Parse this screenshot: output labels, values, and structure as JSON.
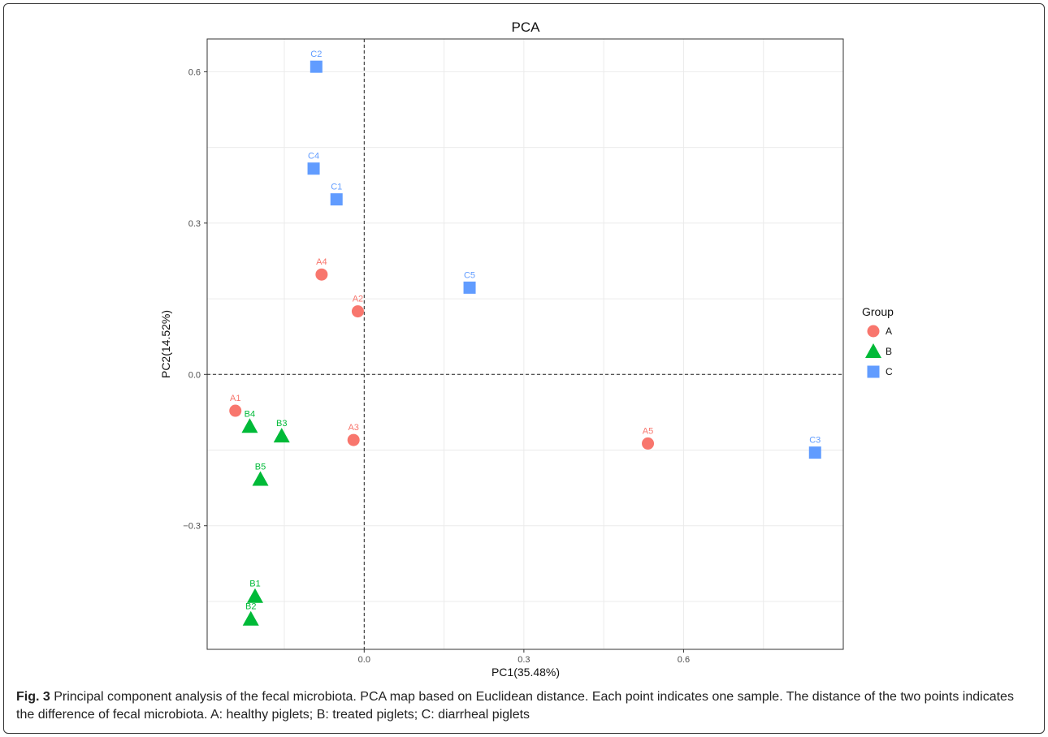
{
  "chart_data": {
    "type": "scatter",
    "title": "PCA",
    "xlabel": "PC1(35.48%)",
    "ylabel": "PC2(14.52%)",
    "xlim": [
      -0.295,
      0.9
    ],
    "ylim": [
      -0.545,
      0.665
    ],
    "xticks": [
      0.0,
      0.3,
      0.6
    ],
    "xtick_labels": [
      "0.0",
      "0.3",
      "0.6"
    ],
    "yticks": [
      -0.3,
      0.0,
      0.3,
      0.6
    ],
    "ytick_labels": [
      "−0.3",
      "0.0",
      "0.3",
      "0.6"
    ],
    "grid": true,
    "reference_lines": {
      "x": 0.0,
      "y": 0.0,
      "style": "dashed"
    },
    "legend": {
      "title": "Group",
      "position": "right",
      "entries": [
        {
          "label": "A",
          "shape": "circle",
          "color": "#F8766D"
        },
        {
          "label": "B",
          "shape": "triangle",
          "color": "#00BA38"
        },
        {
          "label": "C",
          "shape": "square",
          "color": "#619CFF"
        }
      ]
    },
    "series": [
      {
        "name": "A",
        "shape": "circle",
        "color": "#F8766D",
        "points": [
          {
            "label": "A1",
            "x": -0.242,
            "y": -0.072
          },
          {
            "label": "A2",
            "x": -0.012,
            "y": 0.125
          },
          {
            "label": "A3",
            "x": -0.02,
            "y": -0.13
          },
          {
            "label": "A4",
            "x": -0.08,
            "y": 0.198
          },
          {
            "label": "A5",
            "x": 0.533,
            "y": -0.137
          }
        ]
      },
      {
        "name": "B",
        "shape": "triangle",
        "color": "#00BA38",
        "points": [
          {
            "label": "B1",
            "x": -0.205,
            "y": -0.44
          },
          {
            "label": "B2",
            "x": -0.213,
            "y": -0.485
          },
          {
            "label": "B3",
            "x": -0.155,
            "y": -0.122
          },
          {
            "label": "B4",
            "x": -0.215,
            "y": -0.103
          },
          {
            "label": "B5",
            "x": -0.195,
            "y": -0.208
          }
        ]
      },
      {
        "name": "C",
        "shape": "square",
        "color": "#619CFF",
        "points": [
          {
            "label": "C1",
            "x": -0.052,
            "y": 0.347
          },
          {
            "label": "C2",
            "x": -0.09,
            "y": 0.61
          },
          {
            "label": "C3",
            "x": 0.847,
            "y": -0.155
          },
          {
            "label": "C4",
            "x": -0.095,
            "y": 0.408
          },
          {
            "label": "C5",
            "x": 0.198,
            "y": 0.172
          }
        ]
      }
    ]
  },
  "caption": {
    "label": "Fig. 3",
    "text": " Principal component analysis of the fecal microbiota. PCA map based on Euclidean distance. Each point indicates one sample. The distance of the two points indicates the difference of fecal microbiota. A: healthy piglets; B: treated piglets; C: diarrheal piglets"
  }
}
